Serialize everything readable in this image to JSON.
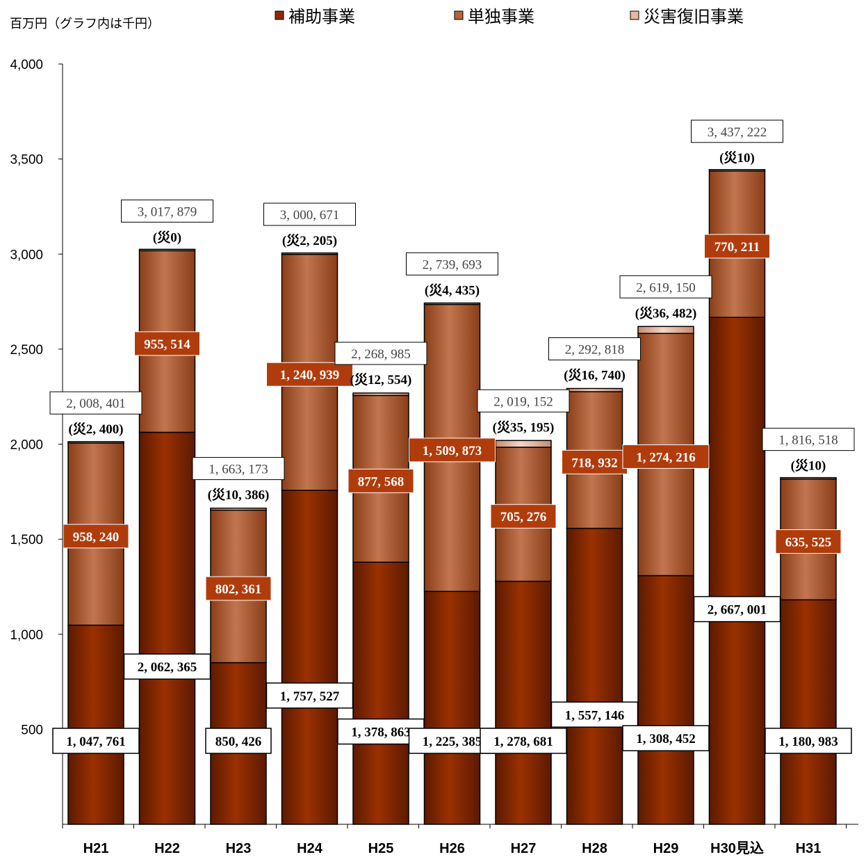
{
  "chart_data": {
    "type": "bar",
    "stacked": true,
    "ylabel": "百万円（グラフ内は千円）",
    "ylim": [
      0,
      4000
    ],
    "yticks": [
      500,
      1000,
      1500,
      2000,
      2500,
      3000,
      3500,
      4000
    ],
    "ytick_labels": [
      "500",
      "1,000",
      "1,500",
      "2,000",
      "2,500",
      "3,000",
      "3,500",
      "4,000"
    ],
    "grid": false,
    "legend_position": "top",
    "categories": [
      "H21",
      "H22",
      "H23",
      "H24",
      "H25",
      "H26",
      "H27",
      "H28",
      "H29",
      "H30見込",
      "H31"
    ],
    "series": [
      {
        "name": "補助事業",
        "color": "#8b2a00",
        "values": [
          1047.761,
          2062.365,
          850.426,
          1757.527,
          1378.863,
          1225.385,
          1278.681,
          1557.146,
          1308.452,
          2667.001,
          1180.983
        ],
        "labels": [
          "1, 047, 761",
          "2, 062, 365",
          "850, 426",
          "1, 757, 527",
          "1, 378, 863",
          "1, 225, 385",
          "1, 278, 681",
          "1, 557, 146",
          "1, 308, 452",
          "2, 667, 001",
          "1, 180, 983"
        ]
      },
      {
        "name": "単独事業",
        "color": "#b5633a",
        "values": [
          958.24,
          955.514,
          802.361,
          1240.939,
          877.568,
          1509.873,
          705.276,
          718.932,
          1274.216,
          770.211,
          635.525
        ],
        "labels": [
          "958, 240",
          "955, 514",
          "802, 361",
          "1, 240, 939",
          "877, 568",
          "1, 509, 873",
          "705, 276",
          "718, 932",
          "1, 274, 216",
          "770, 211",
          "635, 525"
        ]
      },
      {
        "name": "災害復旧事業",
        "color": "#e8b8a0",
        "values": [
          2.4,
          0,
          10.386,
          2.205,
          12.554,
          4.435,
          35.195,
          16.74,
          36.482,
          0.01,
          0.01
        ],
        "labels": [
          "(災2, 400)",
          "(災0)",
          "(災10, 386)",
          "(災2, 205)",
          "(災12, 554)",
          "(災4, 435)",
          "(災35, 195)",
          "(災16, 740)",
          "(災36, 482)",
          "(災10)",
          "(災10)"
        ]
      }
    ],
    "totals": [
      2008.401,
      3017.879,
      1663.173,
      3000.671,
      2268.985,
      2739.693,
      2019.152,
      2292.818,
      2619.15,
      3437.222,
      1816.518
    ],
    "total_labels": [
      "2, 008, 401",
      "3, 017, 879",
      "1, 663, 173",
      "3, 000, 671",
      "2, 268, 985",
      "2, 739, 693",
      "2, 019, 152",
      "2, 292, 818",
      "2, 619, 150",
      "3, 437, 222",
      "1, 816, 518"
    ]
  }
}
